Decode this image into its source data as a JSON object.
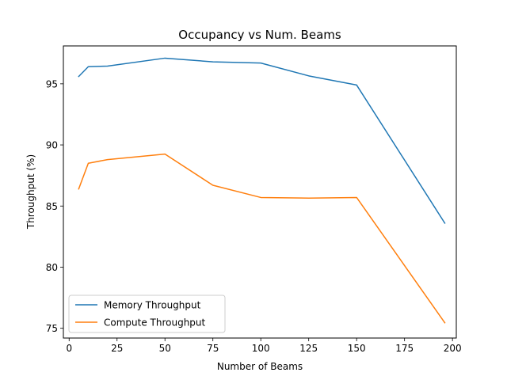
{
  "chart_data": {
    "type": "line",
    "title": "Occupancy vs Num. Beams",
    "xlabel": "Number of Beams",
    "ylabel": "Throughput (%)",
    "xlim": [
      -3,
      202
    ],
    "ylim": [
      74.2,
      98.1
    ],
    "xticks": [
      0,
      25,
      50,
      75,
      100,
      125,
      150,
      175,
      200
    ],
    "yticks": [
      75,
      80,
      85,
      90,
      95
    ],
    "grid": false,
    "legend_position": "lower-left",
    "series": [
      {
        "name": "Memory Throughput",
        "color": "#1f77b4",
        "x": [
          5,
          10,
          20,
          50,
          75,
          100,
          125,
          150,
          196
        ],
        "y": [
          95.6,
          96.4,
          96.45,
          97.1,
          96.8,
          96.7,
          95.65,
          94.9,
          83.6
        ]
      },
      {
        "name": "Compute Throughput",
        "color": "#ff7f0e",
        "x": [
          5,
          10,
          20,
          50,
          75,
          100,
          125,
          150,
          196
        ],
        "y": [
          86.4,
          88.5,
          88.8,
          89.25,
          86.7,
          85.7,
          85.65,
          85.7,
          75.45
        ]
      }
    ]
  }
}
